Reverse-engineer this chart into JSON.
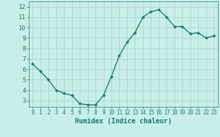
{
  "x": [
    0,
    1,
    2,
    3,
    4,
    5,
    6,
    7,
    8,
    9,
    10,
    11,
    12,
    13,
    14,
    15,
    16,
    17,
    18,
    19,
    20,
    21,
    22,
    23
  ],
  "y": [
    6.5,
    5.8,
    5.0,
    4.0,
    3.7,
    3.5,
    2.7,
    2.6,
    2.6,
    3.5,
    5.3,
    7.3,
    8.6,
    9.5,
    11.0,
    11.5,
    11.7,
    11.0,
    10.1,
    10.1,
    9.4,
    9.5,
    9.0,
    9.2
  ],
  "line_color": "#1a7a6e",
  "marker": "D",
  "marker_size": 2,
  "bg_color": "#c8eee8",
  "grid_color": "#aad4cc",
  "xlabel": "Humidex (Indice chaleur)",
  "xlabel_fontsize": 7,
  "xlim": [
    -0.5,
    23.5
  ],
  "ylim": [
    2.4,
    12.5
  ],
  "yticks": [
    3,
    4,
    5,
    6,
    7,
    8,
    9,
    10,
    11,
    12
  ],
  "xticks": [
    0,
    1,
    2,
    3,
    4,
    5,
    6,
    7,
    8,
    9,
    10,
    11,
    12,
    13,
    14,
    15,
    16,
    17,
    18,
    19,
    20,
    21,
    22,
    23
  ],
  "tick_fontsize": 5.5,
  "ytick_fontsize": 6.5
}
